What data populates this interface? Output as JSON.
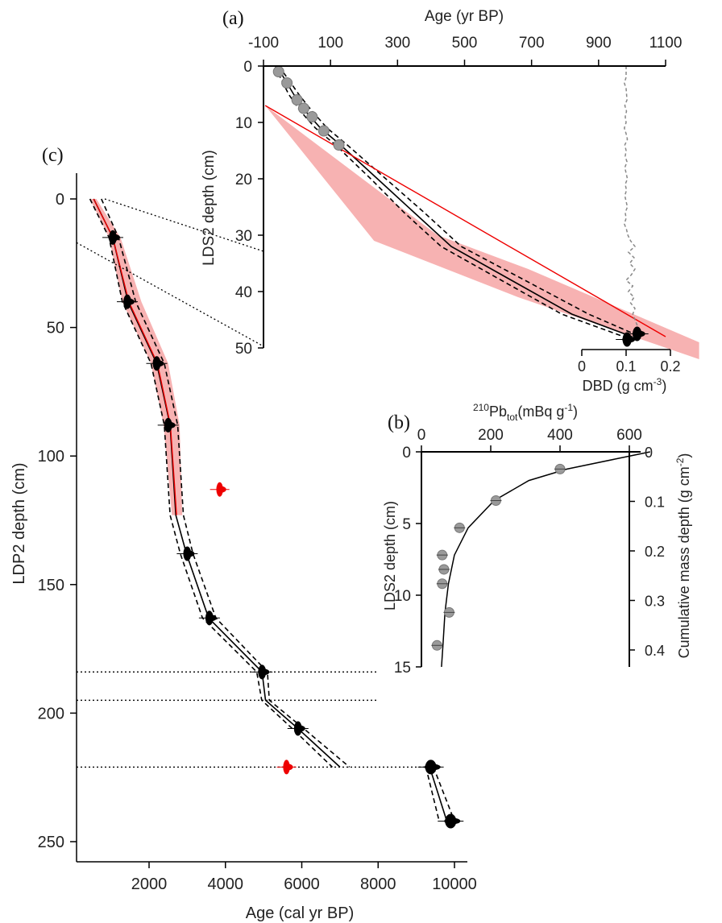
{
  "chart_data": [
    {
      "panel": "(a)",
      "type": "line",
      "x_top": {
        "label": "Age (yr BP)",
        "lim": [
          -100,
          1100
        ],
        "ticks": [
          "-100",
          "100",
          "300",
          "500",
          "700",
          "900",
          "1100"
        ]
      },
      "x_bottom": {
        "label": "DBD (g cm",
        "label_sup": "-3",
        "label_end": ")",
        "lim": [
          0,
          0.2
        ],
        "ticks": [
          "0",
          "0.1",
          "0.2"
        ]
      },
      "y": {
        "label": "LDS2 depth (cm)",
        "lim": [
          0,
          50
        ],
        "ticks": [
          "0",
          "10",
          "20",
          "30",
          "40",
          "50"
        ]
      },
      "age_model": {
        "depth": [
          0,
          2,
          5,
          8,
          11,
          14,
          20,
          26,
          32,
          38,
          44,
          48
        ],
        "age": [
          -60,
          -40,
          -10,
          25,
          70,
          130,
          240,
          350,
          460,
          640,
          820,
          1000
        ]
      },
      "age_model_upper": {
        "depth": [
          0,
          2,
          5,
          8,
          11,
          14,
          20,
          26,
          32,
          38,
          44,
          48
        ],
        "age": [
          -55,
          -30,
          5,
          45,
          90,
          150,
          265,
          380,
          490,
          680,
          870,
          1025
        ]
      },
      "age_model_lower": {
        "depth": [
          0,
          2,
          5,
          8,
          11,
          14,
          20,
          26,
          32,
          38,
          44,
          48
        ],
        "age": [
          -65,
          -50,
          -25,
          10,
          55,
          115,
          220,
          320,
          430,
          610,
          790,
          975
        ]
      },
      "pb210_dates": {
        "depth": [
          1,
          3,
          6,
          7.5,
          9,
          11.5,
          14
        ],
        "age": [
          -55,
          -30,
          0,
          20,
          45,
          80,
          125
        ]
      },
      "c14_dates": {
        "depth": [
          48.5,
          47.5
        ],
        "age": [
          985,
          1015
        ]
      },
      "red_model": {
        "depth": [
          7,
          48
        ],
        "age": [
          -95,
          1100
        ]
      },
      "red_envelope": [
        [
          -95,
          7
        ],
        [
          240,
          22
        ],
        [
          420,
          30
        ],
        [
          690,
          36
        ],
        [
          1200,
          49
        ],
        [
          1200,
          52
        ],
        [
          660,
          41
        ],
        [
          230,
          31
        ],
        [
          -95,
          7
        ]
      ],
      "dbd": {
        "depth": [
          0,
          2,
          3,
          4,
          6,
          7,
          8,
          9,
          10,
          11,
          12,
          13,
          14,
          15,
          16,
          17,
          18,
          19,
          20,
          21,
          22,
          23,
          24,
          25,
          26,
          27,
          28,
          29,
          30,
          31,
          32,
          33,
          34,
          35,
          36,
          37,
          38,
          39,
          40,
          41,
          42,
          43,
          44,
          45,
          46
        ],
        "dbd": [
          0.1,
          0.1,
          0.096,
          0.1,
          0.102,
          0.097,
          0.101,
          0.098,
          0.1,
          0.096,
          0.1,
          0.103,
          0.097,
          0.1,
          0.098,
          0.102,
          0.097,
          0.1,
          0.103,
          0.098,
          0.101,
          0.097,
          0.1,
          0.103,
          0.098,
          0.1,
          0.096,
          0.101,
          0.104,
          0.11,
          0.12,
          0.105,
          0.118,
          0.108,
          0.12,
          0.112,
          0.1,
          0.115,
          0.105,
          0.118,
          0.11,
          0.12,
          0.115,
          0.12,
          0.125
        ]
      }
    },
    {
      "panel": "(b)",
      "type": "scatter",
      "x": {
        "label": "Pb",
        "label_pre": "210",
        "label_sub": "tot",
        "label_post": "(mBq g",
        "label_sup": "-1",
        "label_end": ")",
        "lim": [
          0,
          660
        ],
        "ticks": [
          "0",
          "200",
          "400",
          "600"
        ]
      },
      "y_left": {
        "label": "LDS2 depth (cm)",
        "lim": [
          0,
          15
        ],
        "ticks": [
          "0",
          "5",
          "10",
          "15"
        ]
      },
      "y_right": {
        "label": "Cumulative mass depth (g cm",
        "label_sup": "-2",
        "label_end": ")",
        "lim": [
          0,
          0.45
        ],
        "ticks": [
          "0",
          "0.1",
          "0.2",
          "0.3",
          "0.4"
        ]
      },
      "points": {
        "depth": [
          1.2,
          3.4,
          5.3,
          7.2,
          8.2,
          9.2,
          11.2,
          13.5
        ],
        "pb210": [
          400,
          215,
          110,
          60,
          65,
          60,
          80,
          45
        ]
      },
      "fit": {
        "depth": [
          0,
          0.5,
          1.2,
          2,
          3.4,
          5.3,
          7.2,
          9.2,
          11.2,
          13.5,
          15
        ],
        "pb210": [
          660,
          560,
          420,
          310,
          210,
          135,
          95,
          78,
          68,
          62,
          58
        ]
      }
    },
    {
      "panel": "(c)",
      "type": "line",
      "x": {
        "label": "Age (cal yr BP)",
        "lim": [
          400,
          10300
        ],
        "ticks": [
          "2000",
          "4000",
          "6000",
          "8000",
          "10000"
        ]
      },
      "y": {
        "label": "LDP2 depth (cm)",
        "lim": [
          -8,
          257
        ],
        "ticks": [
          "0",
          "50",
          "100",
          "150",
          "200",
          "250"
        ]
      },
      "age_model": {
        "depth": [
          0,
          15,
          40,
          64,
          88,
          123,
          138,
          163,
          184,
          195,
          206,
          221
        ],
        "age": [
          550,
          1050,
          1450,
          2200,
          2550,
          2700,
          2980,
          3560,
          4960,
          5050,
          5900,
          7000
        ]
      },
      "age_model_upper": {
        "depth": [
          0,
          15,
          40,
          64,
          88,
          123,
          138,
          163,
          184,
          195,
          206,
          221
        ],
        "age": [
          750,
          1200,
          1650,
          2400,
          2750,
          2900,
          3150,
          3750,
          5100,
          5150,
          6050,
          7250
        ]
      },
      "age_model_lower": {
        "depth": [
          0,
          15,
          40,
          64,
          88,
          123,
          138,
          163,
          184,
          195,
          206,
          221
        ],
        "age": [
          450,
          950,
          1300,
          2050,
          2400,
          2550,
          2820,
          3400,
          4820,
          4950,
          5750,
          6800
        ]
      },
      "lower_model": {
        "depth": [
          221,
          242
        ],
        "age": [
          9350,
          9800
        ]
      },
      "lower_model_upper": {
        "depth": [
          221,
          242
        ],
        "age": [
          9450,
          10000
        ]
      },
      "lower_model_lower": {
        "depth": [
          221,
          242
        ],
        "age": [
          9250,
          9600
        ]
      },
      "red_model": {
        "depth": [
          0,
          15,
          40,
          64,
          88,
          123
        ],
        "age": [
          550,
          1050,
          1470,
          2220,
          2560,
          2720
        ]
      },
      "red_envelope": [
        [
          450,
          0
        ],
        [
          950,
          15
        ],
        [
          1300,
          40
        ],
        [
          2050,
          64
        ],
        [
          2380,
          88
        ],
        [
          2600,
          123
        ],
        [
          2870,
          123
        ],
        [
          2800,
          88
        ],
        [
          2500,
          64
        ],
        [
          1800,
          40
        ],
        [
          1250,
          15
        ],
        [
          620,
          0
        ]
      ],
      "dates": {
        "depth": [
          15,
          40,
          64,
          88,
          138,
          163,
          184,
          206,
          221,
          242
        ],
        "age": [
          1050,
          1430,
          2200,
          2500,
          3000,
          3580,
          4960,
          5900,
          9380,
          9900
        ]
      },
      "outliers": {
        "depth": [
          113,
          221
        ],
        "age": [
          3850,
          5600
        ]
      },
      "hlines_depth": [
        184,
        195,
        221
      ]
    }
  ]
}
